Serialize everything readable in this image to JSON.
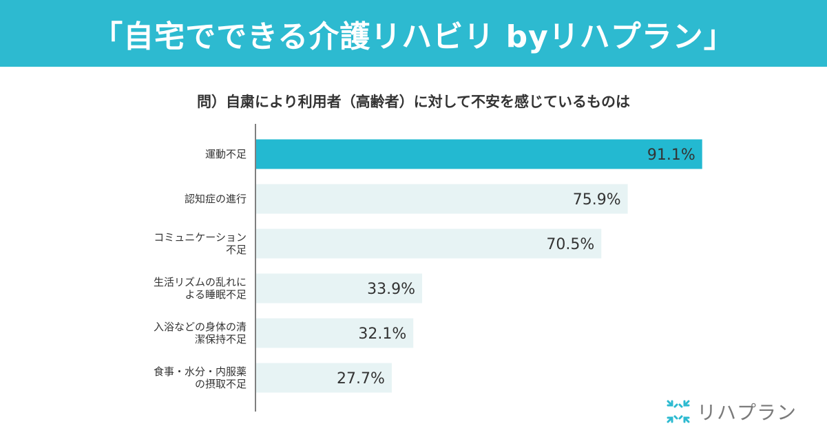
{
  "banner": {
    "title": "「自宅でできる介護リハビリ byリハプラン」"
  },
  "question": "問）自粛により利用者（高齢者）に対して不安を感じているものは",
  "logo": {
    "icon": "rehaplan-logo-icon",
    "text": "リハプラン"
  },
  "colors": {
    "banner": "#2dbad0",
    "highlight_bar": "#23b9d1",
    "bar": "#e7f3f4",
    "axis": "#555555"
  },
  "chart_data": {
    "type": "bar",
    "orientation": "horizontal",
    "categories": [
      [
        "運動不足"
      ],
      [
        "認知症の進行"
      ],
      [
        "コミュニケーション",
        "不足"
      ],
      [
        "生活リズムの乱れに",
        "よる睡眠不足"
      ],
      [
        "入浴などの身体の清",
        "潔保持不足"
      ],
      [
        "食事・水分・内服薬",
        "の摂取不足"
      ]
    ],
    "values": [
      91.1,
      75.9,
      70.5,
      33.9,
      32.1,
      27.7
    ],
    "value_labels": [
      "91.1%",
      "75.9%",
      "70.5%",
      "33.9%",
      "32.1%",
      "27.7%"
    ],
    "highlight_index": 0,
    "xlim": [
      0,
      100
    ],
    "grid": false,
    "legend": "none"
  }
}
